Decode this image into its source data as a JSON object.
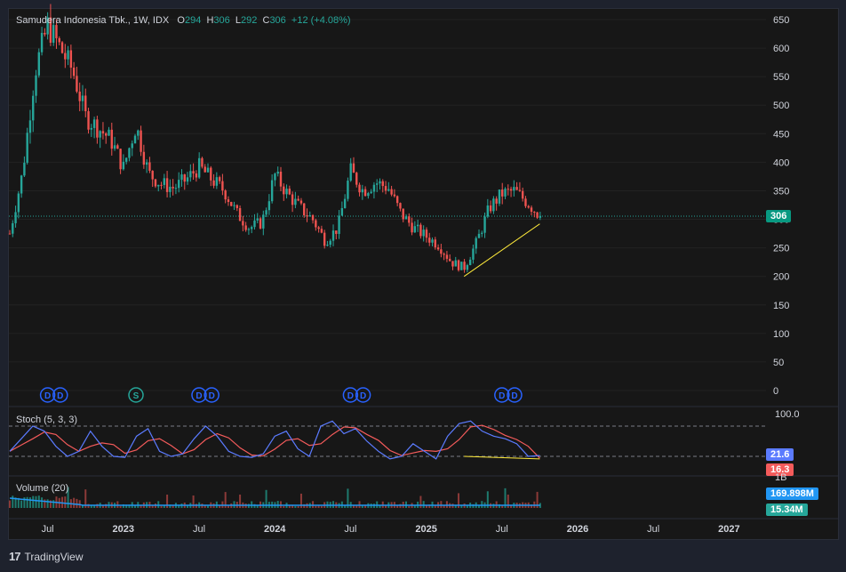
{
  "header": {
    "symbol": "Samudera Indonesia  Tbk., 1W, IDX",
    "o_label": "O",
    "o": "294",
    "h_label": "H",
    "h": "306",
    "l_label": "L",
    "l": "292",
    "c_label": "C",
    "c": "306",
    "change": "+12 (+4.08%)"
  },
  "price_tag": "306",
  "stoch": {
    "label": "Stoch (5, 3, 3)",
    "k_value": "21.6",
    "d_value": "16.3",
    "top_label": "100.0"
  },
  "volume": {
    "label": "Volume (20)",
    "ma_value": "169.898M",
    "vol_value": "15.34M",
    "scale_label": "1B"
  },
  "footer": {
    "brand": "TradingView",
    "logo": "17"
  },
  "colors": {
    "up": "#26a69a",
    "down": "#ef5350",
    "stoch_k": "#5b7bff",
    "stoch_d": "#f45b5b",
    "vol_ma": "#2196f3",
    "trendline": "#ffeb3b"
  },
  "chart_data": [
    {
      "type": "candlestick",
      "title": "Samudera Indonesia  Tbk., 1W, IDX",
      "y_ticks": [
        0,
        50,
        100,
        150,
        200,
        250,
        300,
        350,
        400,
        450,
        500,
        550,
        600,
        650
      ],
      "ylim": [
        0,
        650
      ],
      "x_ticks": [
        "Jul",
        "2023",
        "Jul",
        "2024",
        "Jul",
        "2025",
        "Jul",
        "2026",
        "Jul",
        "2027"
      ],
      "price_path": [
        [
          "2022-04",
          275
        ],
        [
          "2022-05",
          380
        ],
        [
          "2022-06",
          560
        ],
        [
          "2022-07",
          640
        ],
        [
          "2022-08",
          600
        ],
        [
          "2022-09",
          560
        ],
        [
          "2022-10",
          480
        ],
        [
          "2022-11",
          460
        ],
        [
          "2022-12",
          440
        ],
        [
          "2023-01",
          390
        ],
        [
          "2023-02",
          465
        ],
        [
          "2023-03",
          380
        ],
        [
          "2023-04",
          362
        ],
        [
          "2023-05",
          355
        ],
        [
          "2023-06",
          370
        ],
        [
          "2023-07",
          392
        ],
        [
          "2023-08",
          370
        ],
        [
          "2023-09",
          350
        ],
        [
          "2023-10",
          310
        ],
        [
          "2023-11",
          285
        ],
        [
          "2023-12",
          295
        ],
        [
          "2024-01",
          378
        ],
        [
          "2024-02",
          345
        ],
        [
          "2024-03",
          320
        ],
        [
          "2024-04",
          300
        ],
        [
          "2024-05",
          262
        ],
        [
          "2024-06",
          285
        ],
        [
          "2024-07",
          385
        ],
        [
          "2024-08",
          350
        ],
        [
          "2024-09",
          365
        ],
        [
          "2024-10",
          355
        ],
        [
          "2024-11",
          310
        ],
        [
          "2024-12",
          285
        ],
        [
          "2025-01",
          270
        ],
        [
          "2025-02",
          255
        ],
        [
          "2025-03",
          225
        ],
        [
          "2025-04",
          215
        ],
        [
          "2025-05",
          260
        ],
        [
          "2025-06",
          320
        ],
        [
          "2025-07",
          345
        ],
        [
          "2025-08",
          350
        ],
        [
          "2025-09",
          330
        ],
        [
          "2025-10",
          306
        ]
      ],
      "last_price": 306,
      "markers": [
        {
          "date": "2022-07",
          "kind": "D"
        },
        {
          "date": "2022-08",
          "kind": "D"
        },
        {
          "date": "2023-02",
          "kind": "S"
        },
        {
          "date": "2023-07",
          "kind": "D"
        },
        {
          "date": "2023-08",
          "kind": "D"
        },
        {
          "date": "2024-07",
          "kind": "D"
        },
        {
          "date": "2024-08",
          "kind": "D"
        },
        {
          "date": "2025-07",
          "kind": "D"
        },
        {
          "date": "2025-08",
          "kind": "D"
        }
      ],
      "trendline": [
        [
          "2025-04",
          200
        ],
        [
          "2025-10",
          292
        ]
      ]
    },
    {
      "type": "line",
      "title": "Stoch (5, 3, 3)",
      "ylim": [
        0,
        100
      ],
      "levels": [
        80,
        20
      ],
      "series": [
        {
          "name": "%K",
          "last": 21.6
        },
        {
          "name": "%D",
          "last": 16.3
        }
      ],
      "values_k": [
        30,
        55,
        80,
        70,
        40,
        20,
        30,
        70,
        40,
        20,
        18,
        60,
        75,
        30,
        20,
        25,
        55,
        80,
        60,
        30,
        20,
        18,
        25,
        60,
        70,
        35,
        20,
        80,
        90,
        65,
        75,
        50,
        30,
        15,
        20,
        45,
        30,
        15,
        60,
        85,
        90,
        70,
        60,
        55,
        45,
        20,
        21.6
      ],
      "trendline": [
        [
          "2025-04",
          20
        ],
        [
          "2025-10",
          15
        ]
      ]
    },
    {
      "type": "bar",
      "title": "Volume (20)",
      "scale_label": "1B",
      "series": [
        {
          "name": "Volume",
          "last": "15.34M"
        },
        {
          "name": "MA",
          "last": "169.898M"
        }
      ]
    }
  ]
}
